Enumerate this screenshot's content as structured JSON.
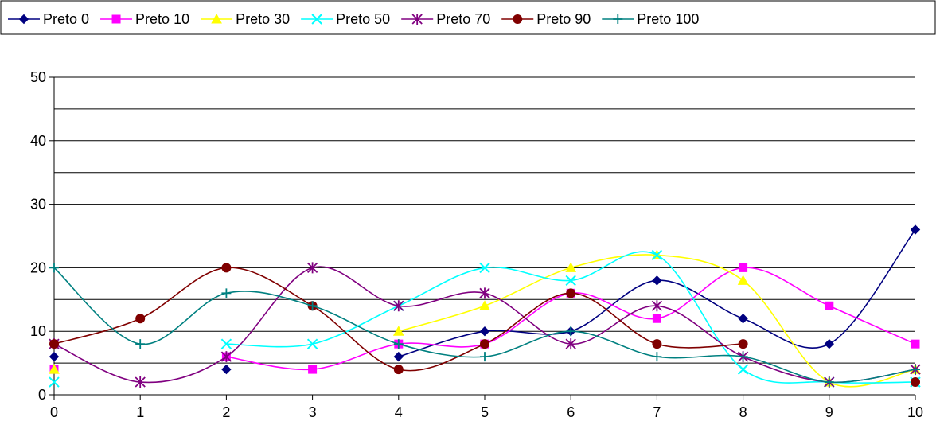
{
  "chart_data": {
    "type": "line",
    "title": "",
    "xlabel": "",
    "ylabel": "",
    "x": [
      0,
      1,
      2,
      3,
      4,
      5,
      6,
      7,
      8,
      9,
      10
    ],
    "xticks": [
      "0",
      "1",
      "2",
      "3",
      "4",
      "5",
      "6",
      "7",
      "8",
      "9",
      "10"
    ],
    "ylim": [
      0,
      50
    ],
    "yticks": [
      "0",
      "10",
      "20",
      "30",
      "40",
      "50"
    ],
    "grid": true,
    "smooth": true,
    "legend": "top",
    "series": [
      {
        "name": "Preto 0",
        "color": "#000080",
        "marker": "diamond",
        "values": [
          6,
          null,
          4,
          null,
          6,
          10,
          10,
          18,
          12,
          8,
          26
        ]
      },
      {
        "name": "Preto 10",
        "color": "#ff00ff",
        "marker": "square",
        "values": [
          4,
          null,
          6,
          4,
          8,
          8,
          16,
          12,
          20,
          14,
          8
        ]
      },
      {
        "name": "Preto 30",
        "color": "#ffff00",
        "marker": "triangle",
        "values": [
          4,
          null,
          null,
          null,
          10,
          14,
          20,
          22,
          18,
          2,
          4
        ]
      },
      {
        "name": "Preto 50",
        "color": "#00ffff",
        "marker": "x",
        "values": [
          2,
          null,
          8,
          8,
          14,
          20,
          18,
          22,
          4,
          2,
          2
        ]
      },
      {
        "name": "Preto 70",
        "color": "#800080",
        "marker": "star",
        "values": [
          8,
          2,
          6,
          20,
          14,
          16,
          8,
          14,
          6,
          2,
          4
        ]
      },
      {
        "name": "Preto 90",
        "color": "#800000",
        "marker": "circle",
        "values": [
          8,
          12,
          20,
          14,
          4,
          8,
          16,
          8,
          8,
          null,
          2
        ]
      },
      {
        "name": "Preto 100",
        "color": "#008080",
        "marker": "plus",
        "values": [
          20,
          8,
          16,
          14,
          8,
          6,
          10,
          6,
          6,
          2,
          4
        ]
      }
    ]
  }
}
